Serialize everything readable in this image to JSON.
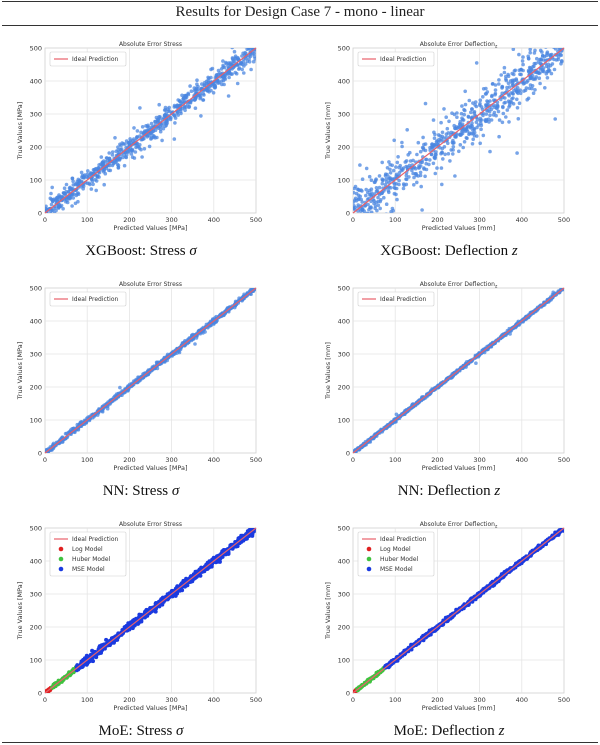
{
  "header": {
    "title": "Results for Design Case 7 - mono - linear"
  },
  "colors": {
    "points": "#4a86e0",
    "ideal_line": "#e8606a",
    "log": "#e02020",
    "huber": "#3fc23f",
    "mse": "#1a3ae0"
  },
  "chart_data": [
    {
      "type": "scatter",
      "title": "Absolute Error Stress",
      "xlabel": "Predicted Values [MPa]",
      "ylabel": "True Values [MPa]",
      "xlim": [
        0,
        500
      ],
      "ylim": [
        0,
        500
      ],
      "xticks": [
        0,
        100,
        200,
        300,
        400,
        500
      ],
      "yticks": [
        0,
        100,
        200,
        300,
        400,
        500
      ],
      "grid": true,
      "legend_position": "top-left",
      "legend": [
        "Ideal Prediction"
      ],
      "ideal_line": [
        [
          0,
          0
        ],
        [
          500,
          500
        ]
      ],
      "series": [
        {
          "color": "#4a86e0",
          "spread": 30,
          "outlier_rate": 0.1,
          "outlier_spread": 80
        }
      ],
      "caption": {
        "model": "XGBoost: Stress ",
        "symbol": "σ"
      }
    },
    {
      "type": "scatter",
      "title": "Absolute Error Deflection",
      "title_subscript": "z",
      "xlabel": "Predicted Values [mm]",
      "ylabel": "True Values [mm]",
      "xlim": [
        0,
        500
      ],
      "ylim": [
        0,
        500
      ],
      "xticks": [
        0,
        100,
        200,
        300,
        400,
        500
      ],
      "yticks": [
        0,
        100,
        200,
        300,
        400,
        500
      ],
      "grid": true,
      "legend_position": "top-left",
      "legend": [
        "Ideal Prediction"
      ],
      "ideal_line": [
        [
          0,
          0
        ],
        [
          500,
          500
        ]
      ],
      "series": [
        {
          "color": "#4a86e0",
          "spread": 60,
          "outlier_rate": 0.25,
          "outlier_spread": 140
        }
      ],
      "caption": {
        "model": "XGBoost: Deflection ",
        "symbol": "z"
      }
    },
    {
      "type": "scatter",
      "title": "Absolute Error Stress",
      "xlabel": "Predicted Values [MPa]",
      "ylabel": "True Values [MPa]",
      "xlim": [
        0,
        500
      ],
      "ylim": [
        0,
        500
      ],
      "xticks": [
        0,
        100,
        200,
        300,
        400,
        500
      ],
      "yticks": [
        0,
        100,
        200,
        300,
        400,
        500
      ],
      "grid": true,
      "legend_position": "top-left",
      "legend": [
        "Ideal Prediction"
      ],
      "ideal_line": [
        [
          0,
          0
        ],
        [
          500,
          500
        ]
      ],
      "series": [
        {
          "color": "#4a86e0",
          "spread": 8,
          "outlier_rate": 0.02,
          "outlier_spread": 20
        }
      ],
      "caption": {
        "model": "NN: Stress ",
        "symbol": "σ"
      }
    },
    {
      "type": "scatter",
      "title": "Absolute Error Deflection",
      "title_subscript": "z",
      "xlabel": "Predicted Values [mm]",
      "ylabel": "True Values [mm]",
      "xlim": [
        0,
        500
      ],
      "ylim": [
        0,
        500
      ],
      "xticks": [
        0,
        100,
        200,
        300,
        400,
        500
      ],
      "yticks": [
        0,
        100,
        200,
        300,
        400,
        500
      ],
      "grid": true,
      "legend_position": "top-left",
      "legend": [
        "Ideal Prediction"
      ],
      "ideal_line": [
        [
          0,
          0
        ],
        [
          500,
          500
        ]
      ],
      "series": [
        {
          "color": "#4a86e0",
          "spread": 5,
          "outlier_rate": 0.02,
          "outlier_spread": 15
        }
      ],
      "caption": {
        "model": "NN: Deflection ",
        "symbol": "z"
      }
    },
    {
      "type": "scatter",
      "title": "Absolute Error Stress",
      "xlabel": "Predicted Values [MPa]",
      "ylabel": "True Values [MPa]",
      "xlim": [
        0,
        500
      ],
      "ylim": [
        0,
        500
      ],
      "xticks": [
        0,
        100,
        200,
        300,
        400,
        500
      ],
      "yticks": [
        0,
        100,
        200,
        300,
        400,
        500
      ],
      "grid": true,
      "legend_position": "top-left",
      "legend": [
        "Ideal Prediction",
        "Log Model",
        "Huber Model",
        "MSE Model"
      ],
      "ideal_line": [
        [
          0,
          0
        ],
        [
          500,
          500
        ]
      ],
      "series": [
        {
          "name": "Log Model",
          "color": "#e02020",
          "range": [
            0,
            15
          ],
          "spread": 3
        },
        {
          "name": "Huber Model",
          "color": "#3fc23f",
          "range": [
            15,
            75
          ],
          "spread": 5
        },
        {
          "name": "MSE Model",
          "color": "#1a3ae0",
          "range": [
            75,
            500
          ],
          "spread": 12
        }
      ],
      "caption": {
        "model": "MoE: Stress ",
        "symbol": "σ"
      }
    },
    {
      "type": "scatter",
      "title": "Absolute Error Deflection",
      "title_subscript": "z",
      "xlabel": "Predicted Values [mm]",
      "ylabel": "True Values [mm]",
      "xlim": [
        0,
        500
      ],
      "ylim": [
        0,
        500
      ],
      "xticks": [
        0,
        100,
        200,
        300,
        400,
        500
      ],
      "yticks": [
        0,
        100,
        200,
        300,
        400,
        500
      ],
      "grid": true,
      "legend_position": "top-left",
      "legend": [
        "Ideal Prediction",
        "Log Model",
        "Huber Model",
        "MSE Model"
      ],
      "ideal_line": [
        [
          0,
          0
        ],
        [
          500,
          500
        ]
      ],
      "series": [
        {
          "name": "Log Model",
          "color": "#e02020",
          "range": [
            0,
            10
          ],
          "spread": 2
        },
        {
          "name": "Huber Model",
          "color": "#3fc23f",
          "range": [
            10,
            75
          ],
          "spread": 4
        },
        {
          "name": "MSE Model",
          "color": "#1a3ae0",
          "range": [
            75,
            500
          ],
          "spread": 6
        }
      ],
      "caption": {
        "model": "MoE: Deflection ",
        "symbol": "z"
      }
    }
  ]
}
